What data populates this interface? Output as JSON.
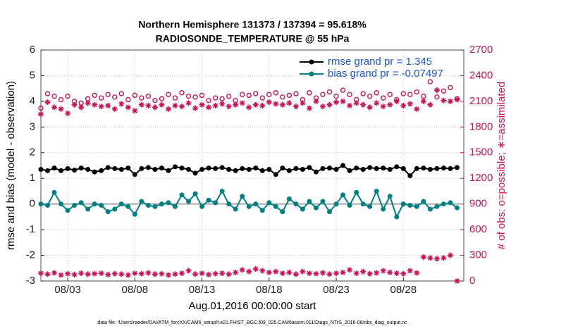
{
  "chart_data": {
    "type": "line",
    "title": "Northern Hemisphere 131373 / 137394 = 95.618%",
    "subtitle": "RADIOSONDE_TEMPERATURE @ 55 hPa",
    "ylabel": "rmse and bias (model - observation)",
    "y2label": "# of obs: o=possible; ∗=assimilated",
    "xlabel": "Aug.01,2016 00:00:00 start",
    "footnote": "data file: /Users/raeder/DAI/ATM_forcXX/CAM6_setup/f.e21.FHIST_BGC.f09_025.CAM6assim.011/Diags_NTrS_2016-08/obs_diag_output.nc",
    "x": [
      0,
      0.5,
      1,
      1.5,
      2,
      2.5,
      3,
      3.5,
      4,
      4.5,
      5,
      5.5,
      6,
      6.5,
      7,
      7.5,
      8,
      8.5,
      9,
      9.5,
      10,
      10.5,
      11,
      11.5,
      12,
      12.5,
      13,
      13.5,
      14,
      14.5,
      15,
      15.5,
      16,
      16.5,
      17,
      17.5,
      18,
      18.5,
      19,
      19.5,
      20,
      20.5,
      21,
      21.5,
      22,
      22.5,
      23,
      23.5,
      24,
      24.5,
      25,
      25.5,
      26,
      26.5,
      27,
      27.5,
      28,
      28.5,
      29,
      29.5,
      30,
      30.5,
      31
    ],
    "xlim": [
      0,
      31.5
    ],
    "xticks": [
      {
        "value": 2,
        "label": "08/03"
      },
      {
        "value": 7,
        "label": "08/08"
      },
      {
        "value": 12,
        "label": "08/13"
      },
      {
        "value": 17,
        "label": "08/18"
      },
      {
        "value": 22,
        "label": "08/23"
      },
      {
        "value": 27,
        "label": "08/28"
      }
    ],
    "ylim": [
      -3,
      6
    ],
    "yticks": [
      -3,
      -2,
      -1,
      0,
      1,
      2,
      3,
      4,
      5,
      6
    ],
    "y2lim": [
      0,
      2700
    ],
    "y2ticks": [
      0,
      300,
      600,
      900,
      1200,
      1500,
      1800,
      2100,
      2400,
      2700
    ],
    "y2_color": "#cc1158",
    "grid": true,
    "reference_line": 0,
    "legend": "upper right",
    "legend_text_color": "#1a56db",
    "series": [
      {
        "name": "rmse grand pr = 1.345",
        "color": "#000000",
        "marker": "dot",
        "line": true,
        "values": [
          1.35,
          1.3,
          1.4,
          1.3,
          1.38,
          1.32,
          1.4,
          1.35,
          1.25,
          1.3,
          1.42,
          1.38,
          1.35,
          1.4,
          1.15,
          1.38,
          1.42,
          1.35,
          1.4,
          1.3,
          1.45,
          1.4,
          1.35,
          1.2,
          1.35,
          1.4,
          1.38,
          1.42,
          1.35,
          1.3,
          1.38,
          1.35,
          1.4,
          1.3,
          1.35,
          1.15,
          1.4,
          1.3,
          1.38,
          1.35,
          1.42,
          1.25,
          1.38,
          1.4,
          1.35,
          1.5,
          1.3,
          1.4,
          1.35,
          1.42,
          1.38,
          1.4,
          1.35,
          1.45,
          1.38,
          1.1,
          1.38,
          1.4,
          1.35,
          1.38,
          1.4,
          1.38,
          1.42
        ]
      },
      {
        "name": "bias grand pr = -0.07497",
        "color": "#008080",
        "marker": "dot",
        "line": true,
        "values": [
          0,
          -0.05,
          0.45,
          0,
          -0.25,
          -0.05,
          0.05,
          -0.2,
          0,
          -0.05,
          -0.3,
          -0.2,
          0,
          -0.1,
          -0.4,
          0.1,
          -0.05,
          -0.1,
          0,
          0.05,
          -0.1,
          0.35,
          0.1,
          0.4,
          -0.1,
          0.15,
          0.05,
          0.5,
          0,
          -0.2,
          0.3,
          -0.1,
          0,
          -0.25,
          0.05,
          -0.1,
          -0.3,
          0.2,
          0,
          -0.2,
          0.1,
          -0.15,
          0.1,
          -0.3,
          0,
          0.35,
          -0.05,
          0.45,
          0,
          -0.1,
          0.5,
          -0.2,
          0.3,
          -0.5,
          0,
          -0.05,
          -0.1,
          0.1,
          -0.2,
          -0.1,
          0,
          0.05,
          -0.15
        ]
      },
      {
        "axis": "y2",
        "color": "#cc1158",
        "marker": "circle",
        "line": false,
        "values": [
          2020,
          2190,
          2160,
          2120,
          2160,
          2100,
          2080,
          2130,
          2170,
          2140,
          2180,
          2150,
          2190,
          2120,
          2170,
          2140,
          2160,
          2110,
          2130,
          2180,
          2140,
          2200,
          2160,
          2150,
          2170,
          2110,
          2140,
          2130,
          2160,
          2110,
          2180,
          2170,
          2190,
          2140,
          2180,
          2200,
          2150,
          2170,
          2190,
          2120,
          2200,
          2140,
          2180,
          2210,
          2160,
          2230,
          2180,
          2120,
          2190,
          2160,
          2200,
          2140,
          2180,
          2120,
          2190,
          2180,
          2210,
          2160,
          2330,
          2150,
          2220,
          2260,
          2130
        ]
      },
      {
        "axis": "y2",
        "color": "#cc1158",
        "marker": "asterisk",
        "line": false,
        "values": [
          1950,
          2090,
          2030,
          2010,
          1960,
          2060,
          2030,
          2080,
          2060,
          2040,
          2050,
          2010,
          2070,
          2030,
          1990,
          2060,
          2050,
          2030,
          2060,
          2010,
          2050,
          2040,
          2080,
          2020,
          2060,
          2030,
          2050,
          2070,
          2040,
          2060,
          2080,
          2030,
          2060,
          2050,
          2090,
          2070,
          2060,
          2080,
          2040,
          2080,
          2020,
          2100,
          2040,
          2060,
          2090,
          2100,
          2050,
          2080,
          2060,
          2030,
          2080,
          2040,
          2060,
          2100,
          2050,
          2070,
          2010,
          2100,
          2060,
          2230,
          2110,
          2100,
          2120
        ]
      },
      {
        "axis": "y2",
        "color": "#cc1158",
        "marker": "asterisk",
        "line": false,
        "values": [
          90,
          80,
          95,
          70,
          85,
          75,
          90,
          80,
          85,
          90,
          75,
          85,
          80,
          70,
          90,
          85,
          95,
          80,
          85,
          70,
          80,
          90,
          120,
          80,
          90,
          75,
          85,
          90,
          80,
          100,
          130,
          110,
          140,
          120,
          100,
          110,
          90,
          100,
          80,
          110,
          90,
          85,
          95,
          80,
          90,
          100,
          130,
          90,
          110,
          85,
          95,
          120,
          100,
          90,
          85,
          120,
          95,
          280,
          270,
          260,
          270,
          300,
          0
        ]
      }
    ]
  }
}
